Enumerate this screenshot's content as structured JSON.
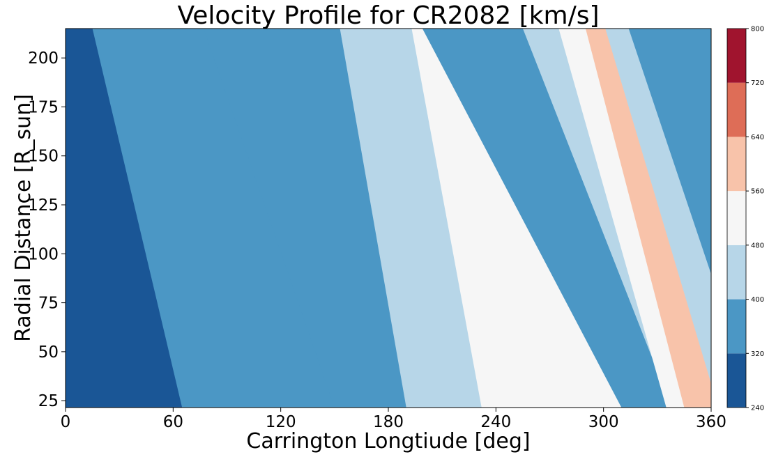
{
  "chart_data": {
    "type": "heatmap",
    "title": "Velocity Profile for CR2082 [km/s]",
    "xlabel": "Carrington Longtiude [deg]",
    "ylabel": "Radial Distance [R_sun]",
    "xlim": [
      0,
      360
    ],
    "ylim": [
      21.5,
      215
    ],
    "x_ticks": [
      0,
      60,
      120,
      180,
      240,
      300,
      360
    ],
    "y_ticks": [
      25,
      50,
      75,
      100,
      125,
      150,
      175,
      200
    ],
    "colorbar": {
      "levels": [
        240,
        320,
        400,
        480,
        560,
        640,
        720,
        800
      ],
      "colors": [
        "#1a5696",
        "#4b97c5",
        "#b7d6e8",
        "#f6f6f6",
        "#f8c3aa",
        "#de6d57",
        "#a0142e"
      ],
      "tick_labels": [
        "240",
        "320",
        "400",
        "480",
        "560",
        "640",
        "720",
        "800"
      ]
    },
    "bands": [
      {
        "x_inner": 65,
        "x_outer": 15,
        "level": 1
      },
      {
        "x_inner": 150,
        "x_outer": 77,
        "level": 1
      },
      {
        "x_inner": 190,
        "x_outer": 153,
        "level": 2
      },
      {
        "x_inner": 232,
        "x_outer": 193,
        "level": 3
      },
      {
        "x_inner": 310,
        "x_outer": 199,
        "level": 1
      },
      {
        "x_inner": 338,
        "x_outer": 255,
        "level": 2
      },
      {
        "x_inner": 335,
        "x_outer": 275,
        "level": 3
      },
      {
        "x_inner": 345,
        "x_outer": 290,
        "level": 4
      },
      {
        "x_inner": 364,
        "x_outer": 301,
        "level": 2
      },
      {
        "x_inner": 385,
        "x_outer": 314,
        "level": 1
      }
    ]
  }
}
